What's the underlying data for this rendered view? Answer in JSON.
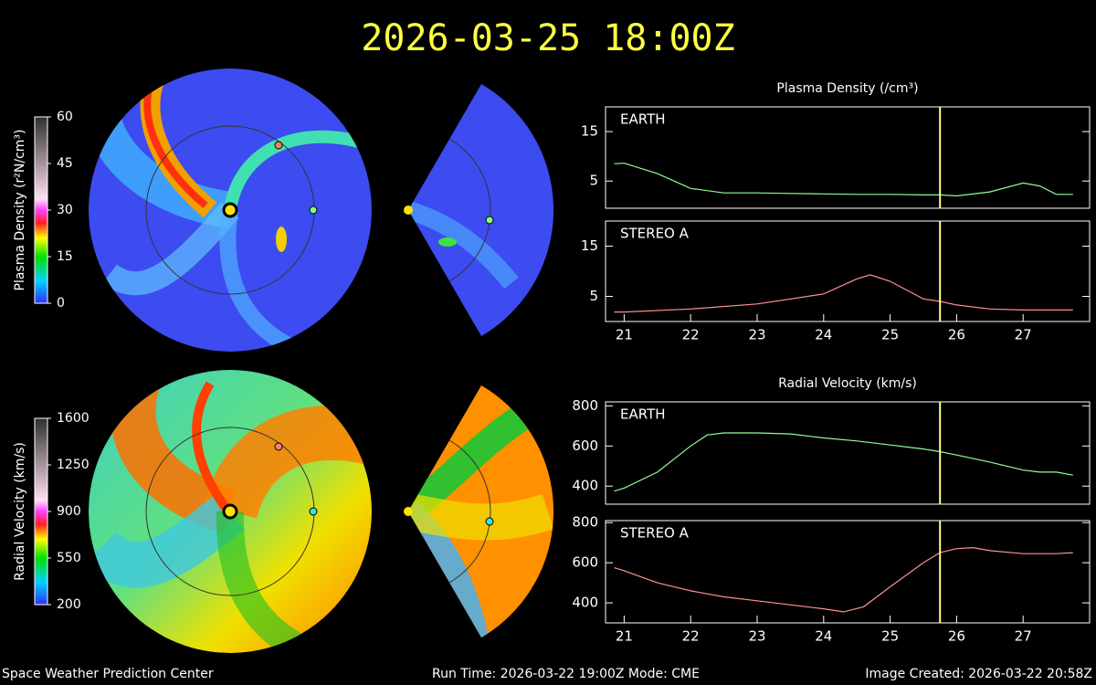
{
  "title": "2026-03-25 18:00Z",
  "footer": {
    "left": "Space Weather Prediction Center",
    "run": "Run Time: 2026-03-22 19:00Z  Mode: CME",
    "created": "Image Created: 2026-03-22 20:58Z"
  },
  "colorbars": [
    {
      "label": "Plasma Density (r²N/cm³)",
      "lim": [
        0,
        60
      ],
      "ticks": [
        0,
        15,
        30,
        45,
        60
      ]
    },
    {
      "label": "Radial Velocity (km/s)",
      "lim": [
        200,
        1600
      ],
      "ticks": [
        200,
        550,
        900,
        1250,
        1600
      ]
    }
  ],
  "chart_data": [
    {
      "type": "line",
      "title": "Plasma Density (/cm³)",
      "xlim": [
        20.72,
        28.0
      ],
      "ylim": [
        -0.5,
        20
      ],
      "yticks": [
        5,
        15
      ],
      "cursor_x": 25.75,
      "x": [
        20.85,
        21,
        21.5,
        22,
        22.5,
        23,
        23.5,
        24,
        24.5,
        25,
        25.5,
        25.75,
        26,
        26.5,
        27,
        27.25,
        27.5,
        27.75
      ],
      "series": [
        {
          "name": "EARTH",
          "color": "#90ff90",
          "values": [
            8.5,
            8.6,
            6.5,
            3.5,
            2.6,
            2.6,
            2.5,
            2.4,
            2.3,
            2.3,
            2.2,
            2.2,
            2.0,
            2.8,
            4.6,
            4.0,
            2.3,
            2.3
          ]
        }
      ]
    },
    {
      "type": "line",
      "xlim": [
        20.72,
        28.0
      ],
      "ylim": [
        0,
        20
      ],
      "yticks": [
        5,
        15
      ],
      "xticks": [
        21,
        22,
        23,
        24,
        25,
        26,
        27
      ],
      "cursor_x": 25.75,
      "x": [
        20.85,
        21,
        22,
        23,
        24,
        24.5,
        24.7,
        25,
        25.5,
        25.75,
        26,
        26.5,
        27,
        27.75
      ],
      "series": [
        {
          "name": "STEREO A",
          "color": "#ff9090",
          "values": [
            1.9,
            1.9,
            2.5,
            3.5,
            5.5,
            8.5,
            9.3,
            8,
            4.5,
            4,
            3.3,
            2.5,
            2.3,
            2.3
          ]
        }
      ]
    },
    {
      "type": "line",
      "title": "Radial Velocity (km/s)",
      "xlim": [
        20.72,
        28.0
      ],
      "ylim": [
        310,
        820
      ],
      "yticks": [
        400,
        600,
        800
      ],
      "cursor_x": 25.75,
      "x": [
        20.85,
        21,
        21.5,
        22,
        22.25,
        22.5,
        23,
        23.5,
        24,
        24.5,
        25,
        25.5,
        25.75,
        26,
        26.5,
        27,
        27.25,
        27.5,
        27.75
      ],
      "series": [
        {
          "name": "EARTH",
          "color": "#90ff90",
          "values": [
            375,
            390,
            470,
            600,
            655,
            665,
            665,
            660,
            640,
            625,
            605,
            585,
            572,
            555,
            520,
            480,
            470,
            470,
            455
          ]
        }
      ]
    },
    {
      "type": "line",
      "xlim": [
        20.72,
        28.0
      ],
      "ylim": [
        300,
        810
      ],
      "yticks": [
        400,
        600,
        800
      ],
      "xticks": [
        21,
        22,
        23,
        24,
        25,
        26,
        27
      ],
      "cursor_x": 25.75,
      "x": [
        20.85,
        21,
        21.5,
        22,
        22.5,
        23,
        23.5,
        24,
        24.3,
        24.6,
        25,
        25.5,
        25.75,
        26,
        26.25,
        26.5,
        27,
        27.5,
        27.75
      ],
      "series": [
        {
          "name": "STEREO A",
          "color": "#ff9090",
          "values": [
            575,
            560,
            500,
            460,
            430,
            410,
            390,
            370,
            355,
            380,
            480,
            600,
            650,
            670,
            675,
            660,
            645,
            645,
            650
          ]
        }
      ]
    }
  ]
}
